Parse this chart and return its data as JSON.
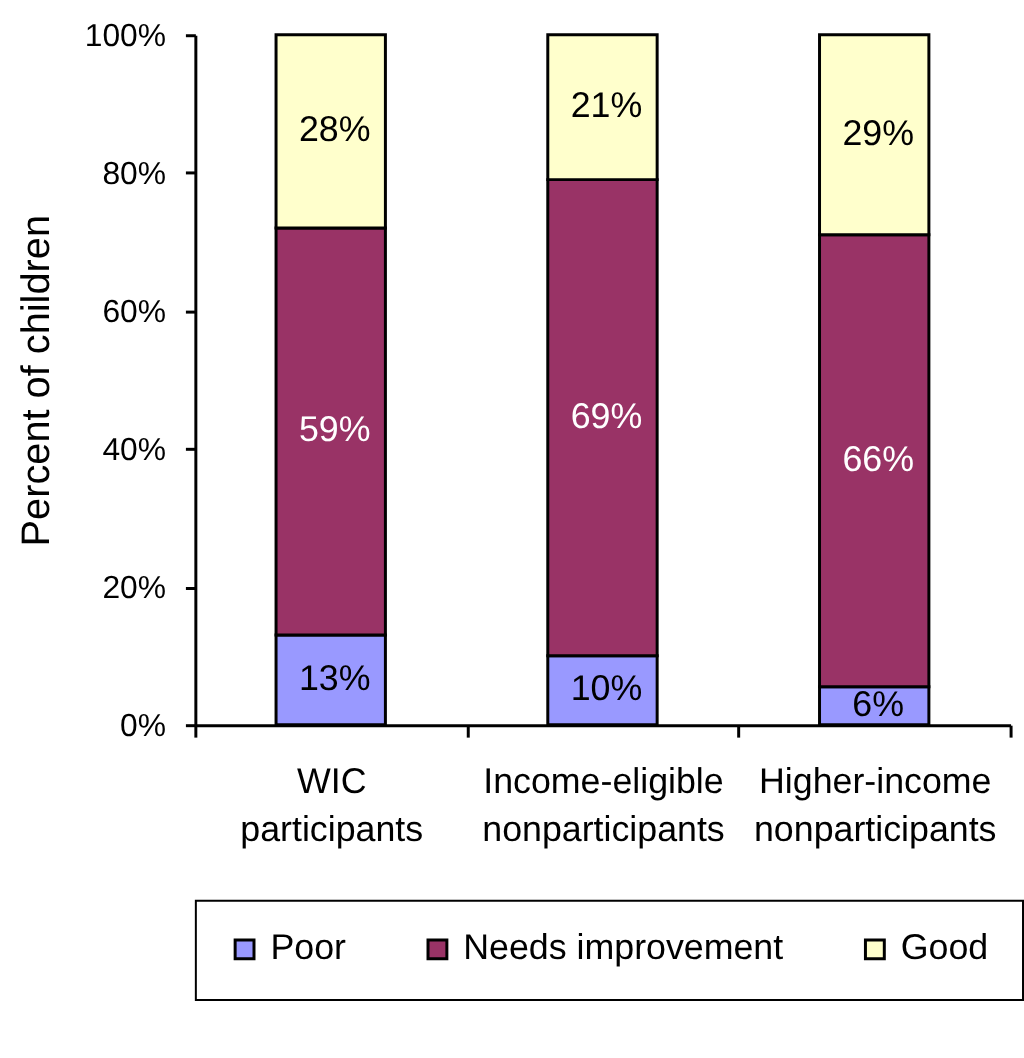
{
  "chart_data": {
    "type": "bar",
    "ylabel": "Percent of children",
    "categories": [
      "WIC participants",
      "Income-eligible nonparticipants",
      "Higher-income nonparticipants"
    ],
    "series": [
      {
        "name": "Poor",
        "color": "#9999ff",
        "values": [
          13,
          10,
          5.5
        ],
        "value_labels": [
          "13%",
          "10%",
          "6%"
        ]
      },
      {
        "name": "Needs improvement",
        "color": "#993366",
        "values": [
          59,
          69,
          65.5
        ],
        "value_labels": [
          "59%",
          "69%",
          "66%"
        ]
      },
      {
        "name": "Good",
        "color": "#ffffcc",
        "values": [
          28,
          21,
          29
        ],
        "value_labels": [
          "28%",
          "21%",
          "29%"
        ]
      }
    ],
    "stacked": true,
    "ylim": [
      0,
      100
    ],
    "yticks": [
      {
        "value": 0,
        "label": "0%"
      },
      {
        "value": 20,
        "label": "20%"
      },
      {
        "value": 40,
        "label": "40%"
      },
      {
        "value": 60,
        "label": "60%"
      },
      {
        "value": 80,
        "label": "80%"
      },
      {
        "value": 100,
        "label": "100%"
      }
    ],
    "legend": "bottom"
  }
}
